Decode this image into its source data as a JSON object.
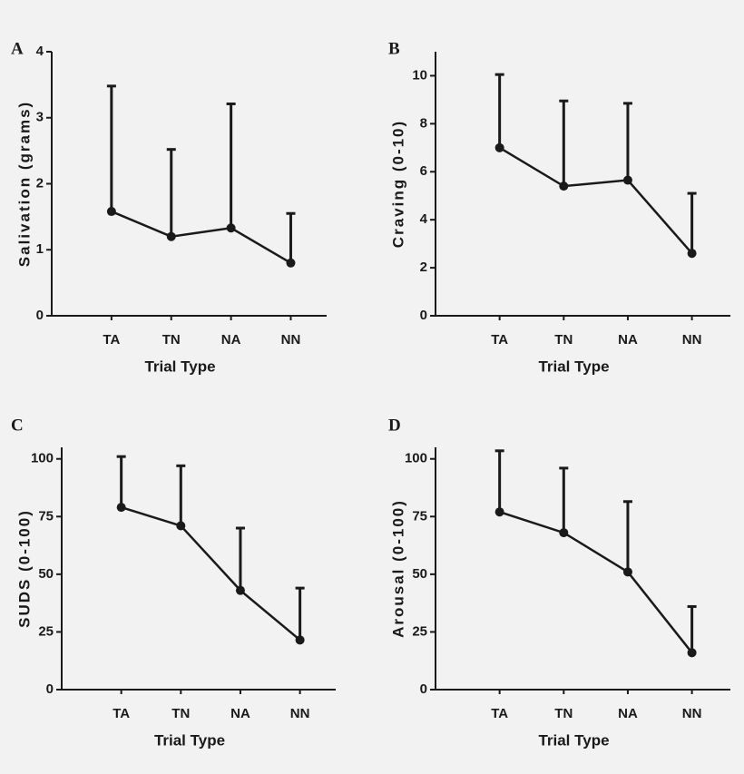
{
  "chart_data": [
    {
      "type": "line",
      "panel_label": "A",
      "ylabel": "Salivation (grams)",
      "xlabel": "Trial Type",
      "categories": [
        "TA",
        "TN",
        "NA",
        "NN"
      ],
      "values": [
        1.58,
        1.2,
        1.33,
        0.8
      ],
      "errors": [
        1.9,
        1.32,
        1.88,
        0.75
      ],
      "ylim": [
        0,
        4
      ],
      "yticks": [
        0,
        1,
        2,
        3,
        4
      ],
      "color": "#1a1a1a"
    },
    {
      "type": "line",
      "panel_label": "B",
      "ylabel": "Craving (0-10)",
      "xlabel": "Trial Type",
      "categories": [
        "TA",
        "TN",
        "NA",
        "NN"
      ],
      "values": [
        7.0,
        5.4,
        5.65,
        2.6
      ],
      "errors": [
        3.05,
        3.55,
        3.2,
        2.5
      ],
      "ylim": [
        0,
        11
      ],
      "yticks": [
        0,
        2,
        4,
        6,
        8,
        10
      ],
      "color": "#1a1a1a"
    },
    {
      "type": "line",
      "panel_label": "C",
      "ylabel": "SUDS (0-100)",
      "xlabel": "Trial Type",
      "categories": [
        "TA",
        "TN",
        "NA",
        "NN"
      ],
      "values": [
        79,
        71,
        43,
        21.5
      ],
      "errors": [
        22,
        26,
        27,
        22.5
      ],
      "ylim": [
        0,
        105
      ],
      "yticks": [
        0,
        25,
        50,
        75,
        100
      ],
      "color": "#1a1a1a"
    },
    {
      "type": "line",
      "panel_label": "D",
      "ylabel": "Arousal (0-100)",
      "xlabel": "Trial Type",
      "categories": [
        "TA",
        "TN",
        "NA",
        "NN"
      ],
      "values": [
        77,
        68,
        51,
        16
      ],
      "errors": [
        26.5,
        28,
        30.5,
        20
      ],
      "ylim": [
        0,
        105
      ],
      "yticks": [
        0,
        25,
        50,
        75,
        100
      ],
      "color": "#1a1a1a"
    }
  ]
}
